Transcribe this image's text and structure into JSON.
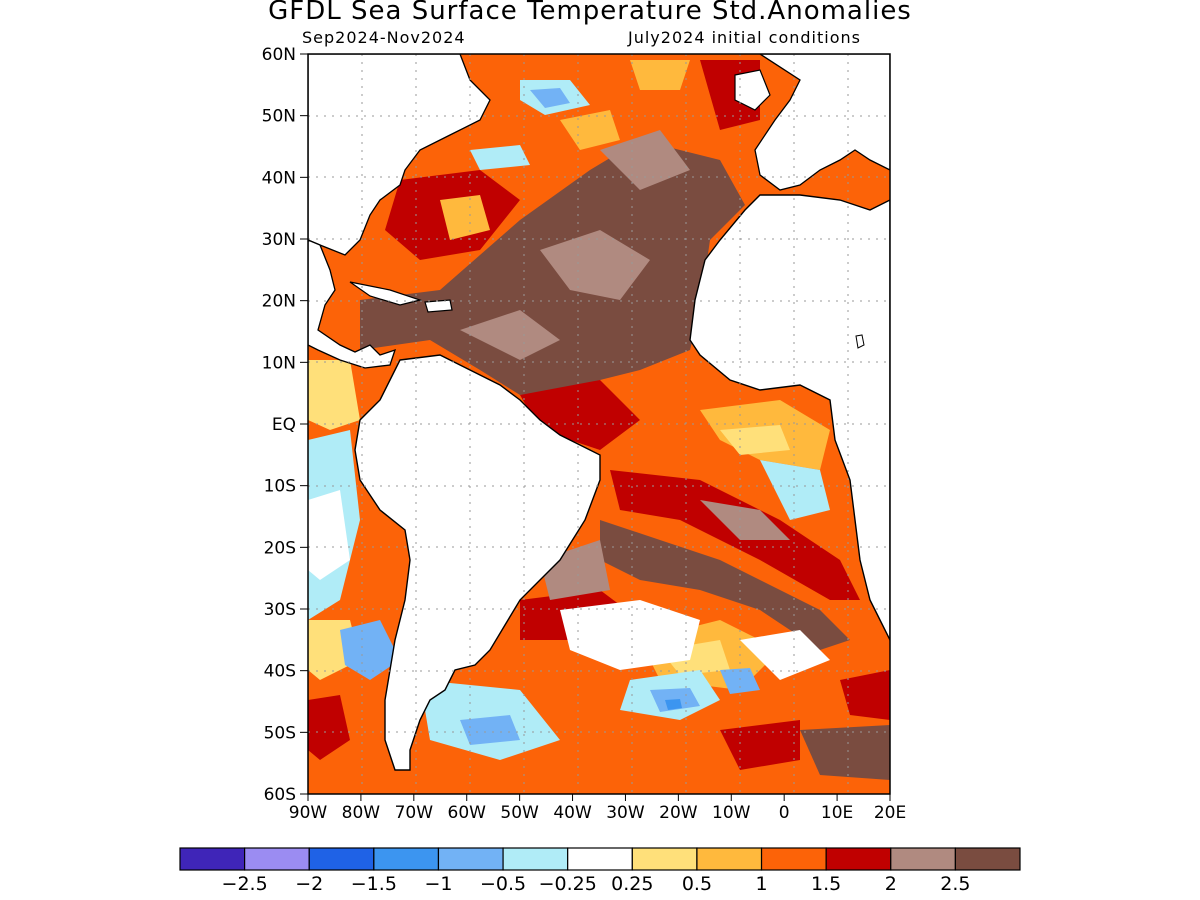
{
  "title": "GFDL Sea Surface Temperature Std.Anomalies",
  "subtitle_left": "Sep2024-Nov2024",
  "subtitle_right": "July2024 initial conditions",
  "map": {
    "lat_labels": [
      "60N",
      "50N",
      "40N",
      "30N",
      "20N",
      "10N",
      "EQ",
      "10S",
      "20S",
      "30S",
      "40S",
      "50S",
      "60S"
    ],
    "lon_labels": [
      "90W",
      "80W",
      "70W",
      "60W",
      "50W",
      "40W",
      "30W",
      "20W",
      "10W",
      "0",
      "10E",
      "20E"
    ],
    "lat_range": [
      -60,
      60
    ],
    "lon_range": [
      -90,
      20
    ],
    "grid": "dotted"
  },
  "colorbar": {
    "colors": [
      "#3f25b8",
      "#9b8cf2",
      "#1f62e6",
      "#3c95f0",
      "#72b2f5",
      "#b0ecf7",
      "#ffffff",
      "#ffe07a",
      "#ffb93d",
      "#fc6308",
      "#c00000",
      "#b08a80",
      "#7a4c40"
    ],
    "tick_labels": [
      "−2.5",
      "−2",
      "−1.5",
      "−1",
      "−0.5",
      "−0.25",
      "0.25",
      "0.5",
      "1",
      "1.5",
      "2",
      "2.5"
    ]
  },
  "palette": {
    "ocean_base": "#fc6308",
    "land": "#ffffff",
    "coast": "#000000",
    "very_warm": "#7a4c40",
    "warm_rose": "#b08a80",
    "dark_red": "#c00000",
    "orange": "#ffb93d",
    "yellow": "#ffe07a",
    "light_blue": "#b0ecf7",
    "mid_blue": "#72b2f5",
    "blue": "#3c95f0"
  }
}
